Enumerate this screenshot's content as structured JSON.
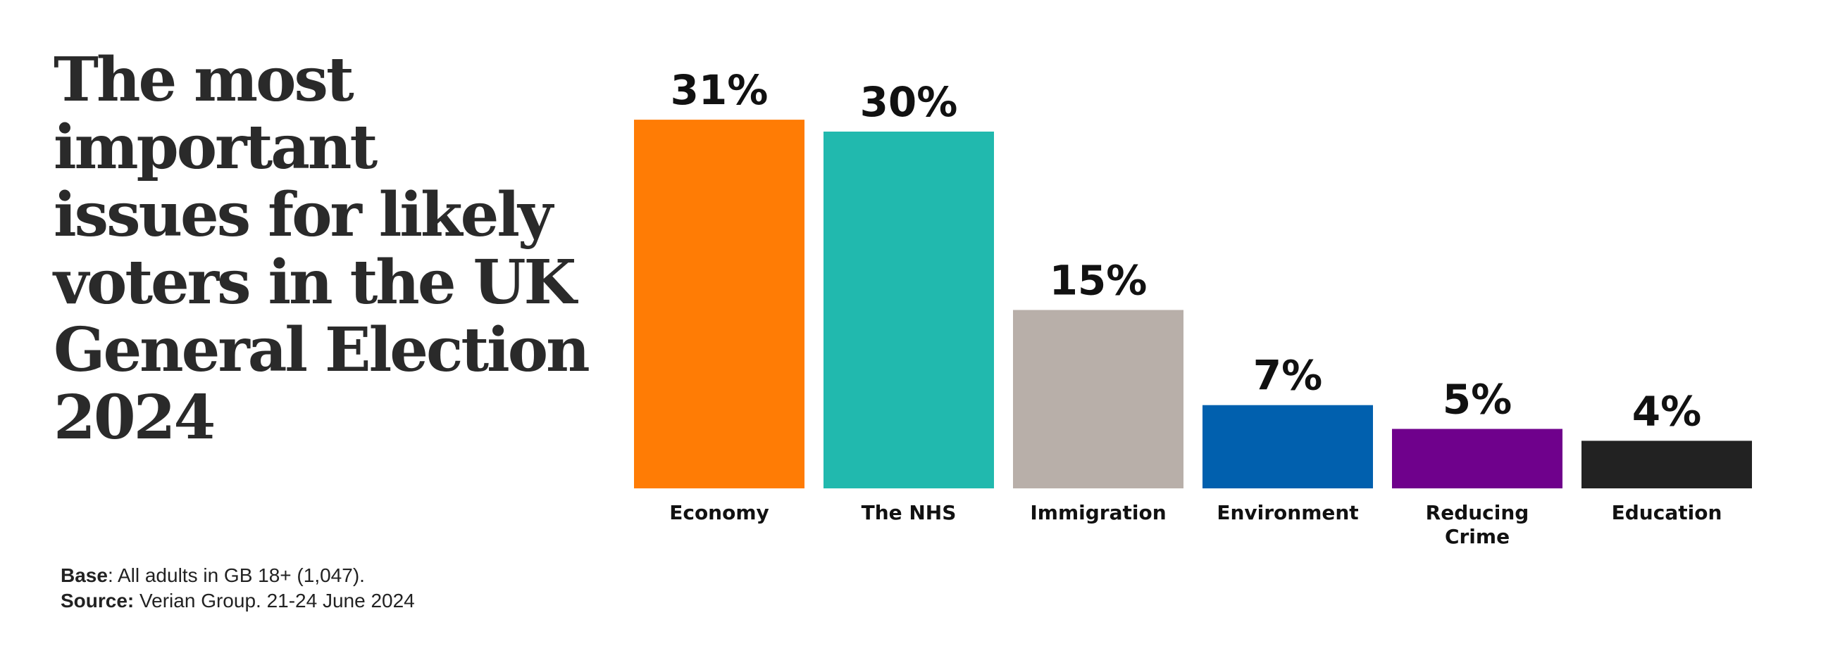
{
  "title": "The most important issues for likely voters in the UK General Election 2024",
  "footnote": {
    "base_label": "Base",
    "base_text": ": All adults in GB 18+ (1,047).",
    "source_label": "Source:",
    "source_text": " Verian Group. 21-24 June 2024"
  },
  "chart_data": {
    "type": "bar",
    "categories": [
      "Economy",
      "The NHS",
      "Immigration",
      "Environment",
      "Reducing Crime",
      "Education"
    ],
    "values": [
      31,
      30,
      15,
      7,
      5,
      4
    ],
    "value_labels": [
      "31%",
      "30%",
      "15%",
      "7%",
      "5%",
      "4%"
    ],
    "colors": [
      "#FF7C05",
      "#21B9AE",
      "#B8AFA9",
      "#0160AE",
      "#6F018C",
      "#222222"
    ],
    "title": "The most important issues for likely voters in the UK General Election 2024",
    "xlabel": "",
    "ylabel": "",
    "grid": false
  }
}
